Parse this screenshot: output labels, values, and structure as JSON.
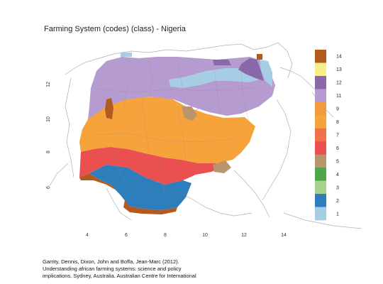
{
  "title": "Farming System (codes) (class) - Nigeria",
  "axes": {
    "x_ticks": [
      "4",
      "6",
      "8",
      "10",
      "12",
      "14"
    ],
    "y_ticks": [
      "6",
      "8",
      "10",
      "12"
    ]
  },
  "legend": {
    "items": [
      {
        "label": "14",
        "color": "#b35a1f"
      },
      {
        "label": "13",
        "color": "#f7f08a"
      },
      {
        "label": "12",
        "color": "#8a67a9"
      },
      {
        "label": "11",
        "color": "#b59bcf"
      },
      {
        "label": "9",
        "color": "#f29a3e"
      },
      {
        "label": "8",
        "color": "#f7a33c"
      },
      {
        "label": "7",
        "color": "#f07248"
      },
      {
        "label": "6",
        "color": "#e9504f"
      },
      {
        "label": "5",
        "color": "#b8956c"
      },
      {
        "label": "4",
        "color": "#4ea64a"
      },
      {
        "label": "3",
        "color": "#a8d18d"
      },
      {
        "label": "2",
        "color": "#2e7ebc"
      },
      {
        "label": "1",
        "color": "#a6cde3"
      }
    ]
  },
  "citation": {
    "lines": [
      "Garrity, Dennis, Dixon, John and Boffa, Jean-Marc (2012).",
      "Understanding african farming systems: science and policy",
      "implications. Sydney, Australia. Australian Centre for International"
    ]
  }
}
